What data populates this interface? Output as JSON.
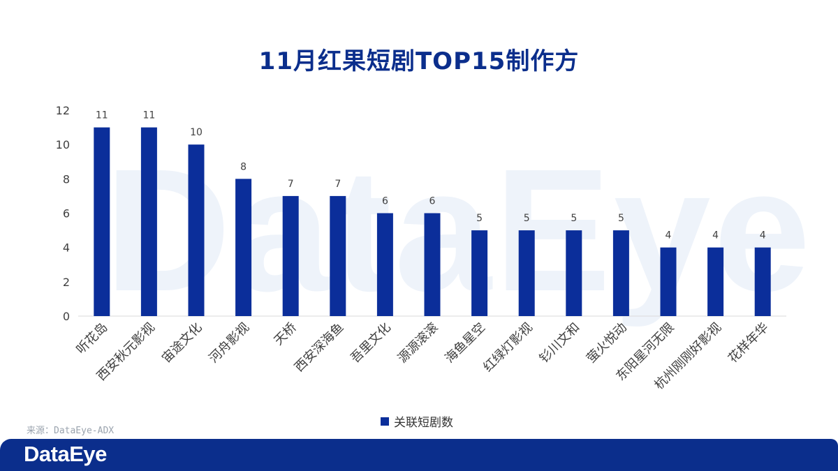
{
  "watermark_text": "DataEye",
  "legend": {
    "label": "关联短剧数",
    "color": "#0b2e9a"
  },
  "source_text": "来源：DataEye-ADX",
  "footer": {
    "logo_text": "DataEye",
    "bar_color": "#0b2e8c"
  },
  "chart_data": {
    "type": "bar",
    "title": "11月红果短剧TOP15制作方",
    "categories": [
      "听花岛",
      "西安秋元影视",
      "宙途文化",
      "河舟影视",
      "天桥",
      "西安深海鱼",
      "吾里文化",
      "源源滚滚",
      "海鱼星空",
      "红绿灯影视",
      "钐川文和",
      "萤火悦动",
      "东阳星河无限",
      "杭州刚刚好影视",
      "花样年华"
    ],
    "series": [
      {
        "name": "关联短剧数",
        "values": [
          11,
          11,
          10,
          8,
          7,
          7,
          6,
          6,
          5,
          5,
          5,
          5,
          4,
          4,
          4
        ],
        "color": "#0b2e9a"
      }
    ],
    "ylim": [
      0,
      12
    ],
    "yticks": [
      0,
      2,
      4,
      6,
      8,
      10,
      12
    ],
    "xlabel": "",
    "ylabel": "",
    "grid": false,
    "data_labels": true,
    "legend_position": "bottom"
  }
}
